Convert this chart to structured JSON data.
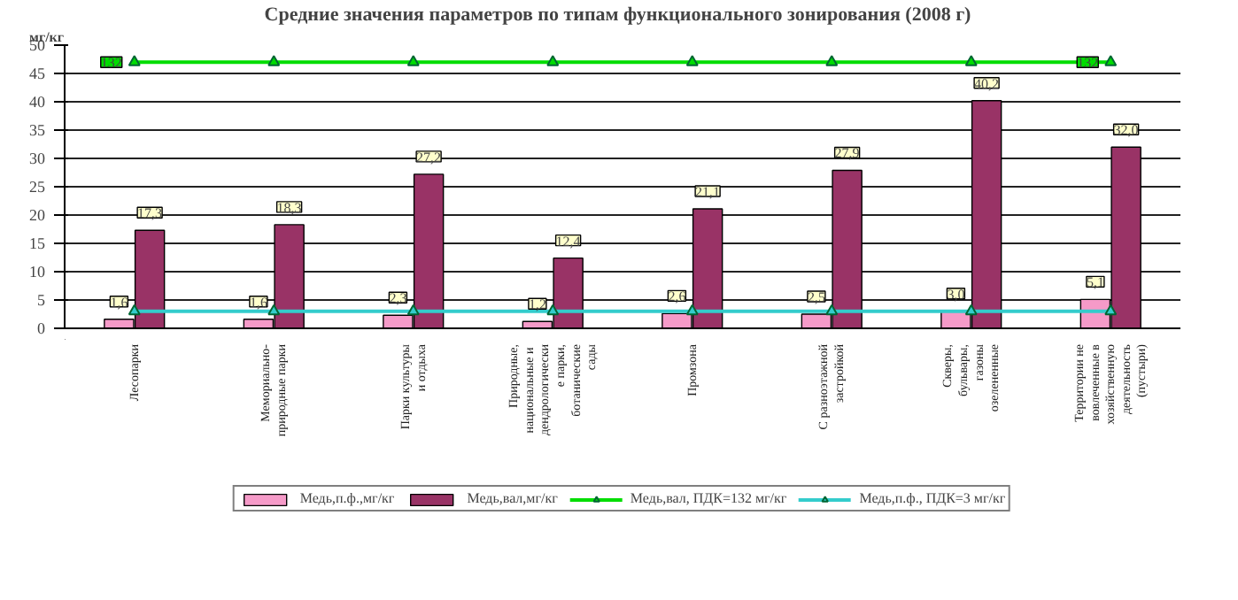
{
  "chart_data": {
    "type": "bar",
    "title": "Средние значения параметров по типам  функционального зонирования  (2008 г)",
    "ylabel": "мг/кг",
    "categories": [
      "Лесопарки",
      "Мемориально-природные парки",
      "Парки культуры и отдыха",
      "Природные, национальные и дендрологические парки, ботанические сады",
      "Промзона",
      "С разноэтажной застройкой",
      "Скверы, бульвары, газоны озелененные",
      "Территории не вовлеченные в хозяйственную деятельность (пустыри)"
    ],
    "series": [
      {
        "name": "Медь,п.ф.,мг/кг",
        "color": "#f59ac8",
        "values": [
          1.6,
          1.6,
          2.3,
          1.2,
          2.6,
          2.5,
          3.0,
          5.1
        ],
        "value_labels": [
          "1,6",
          "1,6",
          "2,3",
          "1,2",
          "2,6",
          "2,5",
          "3,0",
          "5,1"
        ]
      },
      {
        "name": "Медь,вал,мг/кг",
        "color": "#993366",
        "values": [
          17.3,
          18.3,
          27.2,
          12.4,
          21.1,
          27.9,
          40.2,
          32.0
        ],
        "value_labels": [
          "17,3",
          "18,3",
          "27,2",
          "12,4",
          "21,1",
          "27,9",
          "40,2",
          "32,0"
        ]
      },
      {
        "name": "Медь,вал, ПДК=132 мг/кг",
        "type": "line",
        "color": "#00dd00",
        "values": [
          47,
          47,
          47,
          47,
          47,
          47,
          47,
          47
        ]
      },
      {
        "name": "Медь,п.ф., ПДК=3 мг/кг",
        "type": "line",
        "color": "#33cccc",
        "values": [
          3,
          3,
          3,
          3,
          3,
          3,
          3,
          3
        ]
      }
    ],
    "annotations": [
      {
        "text": "132",
        "x": "Лесопарки",
        "y": 47
      },
      {
        "text": "132",
        "x": "Территории не вовлеченные в хозяйственную деятельность (пустыри)",
        "y": 47
      }
    ],
    "ylim": [
      0,
      50
    ],
    "yticks": [
      0,
      5,
      10,
      15,
      20,
      25,
      30,
      35,
      40,
      45,
      50
    ],
    "grid": "y",
    "legend": "bottom",
    "marker": "triangle"
  }
}
